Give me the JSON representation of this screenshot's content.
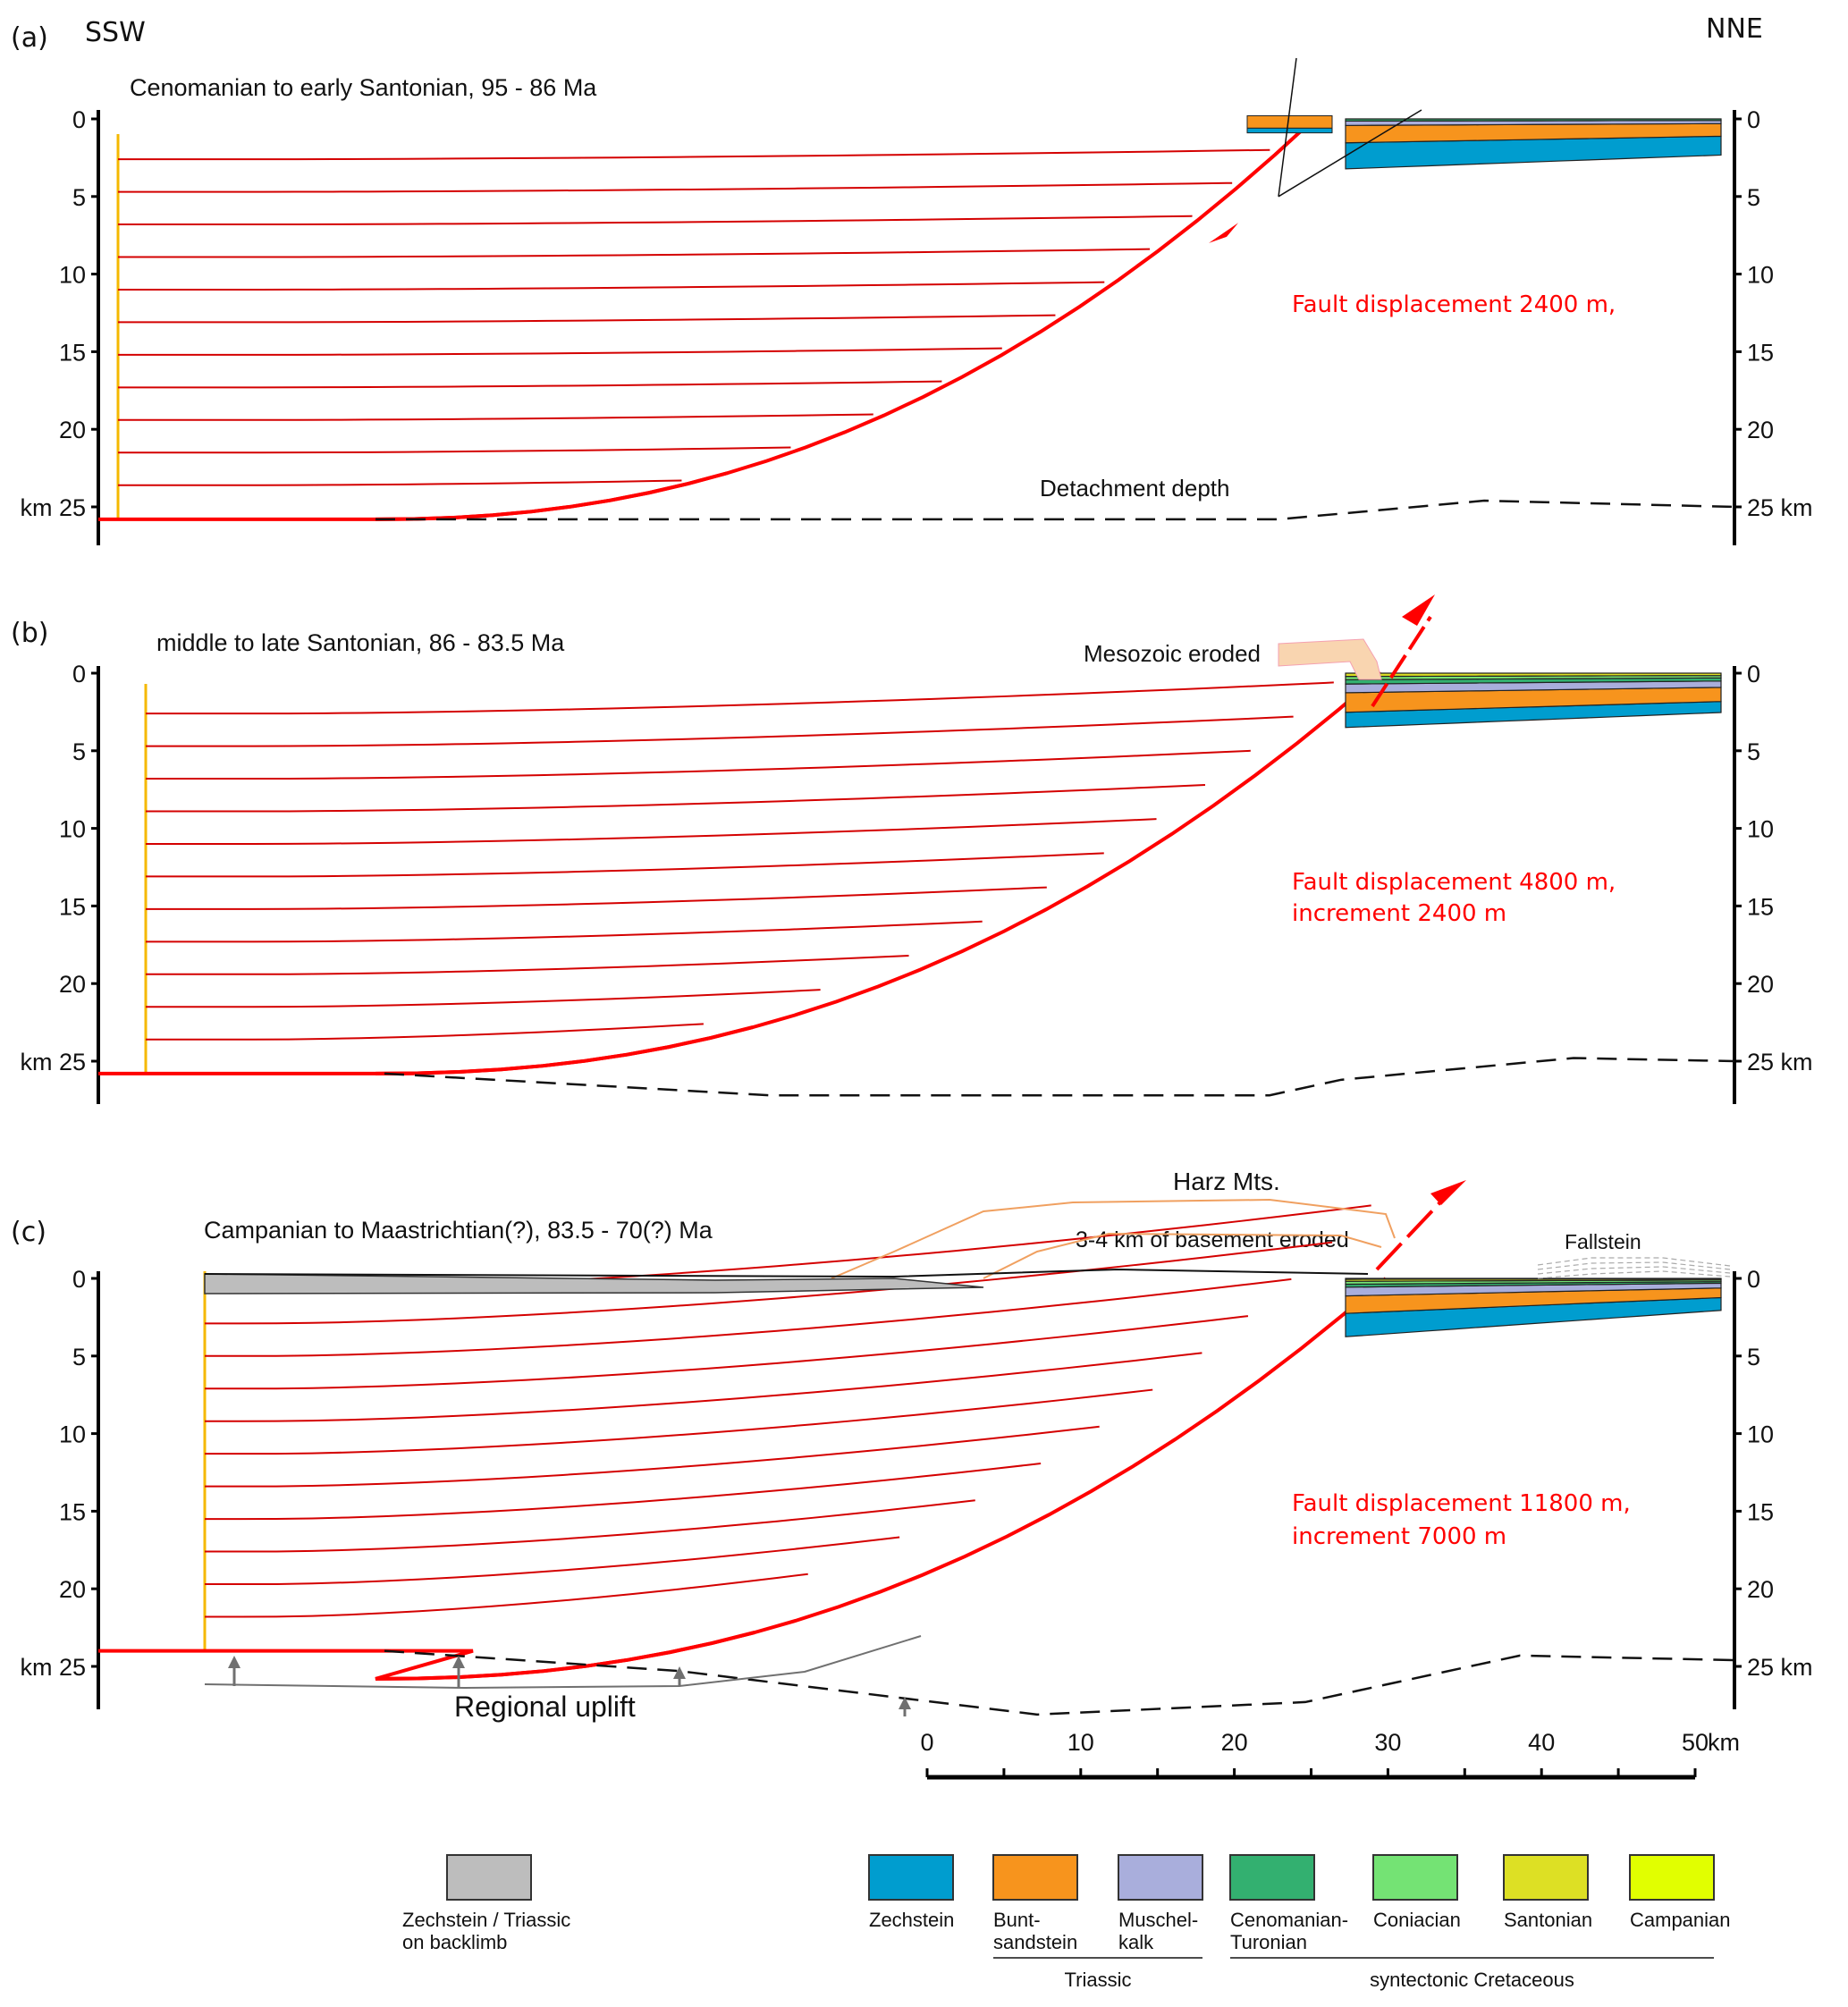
{
  "figure": {
    "direction_left": "SSW",
    "direction_right": "NNE",
    "depth_unit": "km",
    "depth_ticks": [
      0,
      5,
      10,
      15,
      20,
      25
    ],
    "depth_range_km": [
      0,
      25
    ],
    "panels": [
      {
        "id": "a",
        "label": "(a)",
        "title": "Cenomanian to early Santonian, 95 - 86 Ma",
        "displacement_text": "Fault displacement 2400 m,",
        "increment_text": "",
        "annotations": {
          "detachment": "Detachment depth"
        }
      },
      {
        "id": "b",
        "label": "(b)",
        "title": "middle to late Santonian, 86 - 83.5 Ma",
        "displacement_text": "Fault displacement 4800 m,",
        "increment_text": "increment  2400 m",
        "annotations": {
          "eroded": "Mesozoic eroded"
        }
      },
      {
        "id": "c",
        "label": "(c)",
        "title": "Campanian to Maastrichtian(?), 83.5 - 70(?) Ma",
        "displacement_text": "Fault displacement 11800 m,",
        "increment_text": "increment  7000 m",
        "annotations": {
          "mountains": "Harz Mts.",
          "eroded": "3-4 km of basement eroded",
          "fallstein": "Fallstein",
          "uplift": "Regional uplift"
        }
      }
    ],
    "scale_bar": {
      "unit": "km",
      "labels": [
        "0",
        "10",
        "20",
        "30",
        "40",
        "50"
      ],
      "max_km": 50,
      "minor_step_km": 5
    },
    "legend": {
      "items": [
        {
          "id": "backlimb",
          "label_lines": [
            "Zechstein / Triassic",
            "on backlimb"
          ],
          "color": "#bdbdbd"
        },
        {
          "id": "zechstein",
          "label_lines": [
            "Zechstein"
          ],
          "color": "#009dcf"
        },
        {
          "id": "buntsandstein",
          "label_lines": [
            "Bunt-",
            "sandstein"
          ],
          "color": "#f7941d"
        },
        {
          "id": "muschelkalk",
          "label_lines": [
            "Muschel-",
            "kalk"
          ],
          "color": "#a9aedc"
        },
        {
          "id": "cenomanian_turonian",
          "label_lines": [
            "Cenomanian-",
            "Turonian"
          ],
          "color": "#33b070"
        },
        {
          "id": "coniacian",
          "label_lines": [
            "Coniacian"
          ],
          "color": "#74e374"
        },
        {
          "id": "santonian",
          "label_lines": [
            "Santonian"
          ],
          "color": "#dde024"
        },
        {
          "id": "campanian",
          "label_lines": [
            "Campanian"
          ],
          "color": "#e1ff00"
        }
      ],
      "groups": [
        {
          "label": "Triassic",
          "members": [
            "buntsandstein",
            "muschelkalk"
          ]
        },
        {
          "label": "syntectonic Cretaceous",
          "members": [
            "cenomanian_turonian",
            "coniacian",
            "santonian",
            "campanian"
          ]
        }
      ]
    },
    "colors": {
      "fault": "#ff0000",
      "horizons": "#d40000",
      "pin_line": "#f5b800",
      "axis": "#000000",
      "eroded_outline": "#f0a060",
      "uplift": "#707070"
    }
  }
}
